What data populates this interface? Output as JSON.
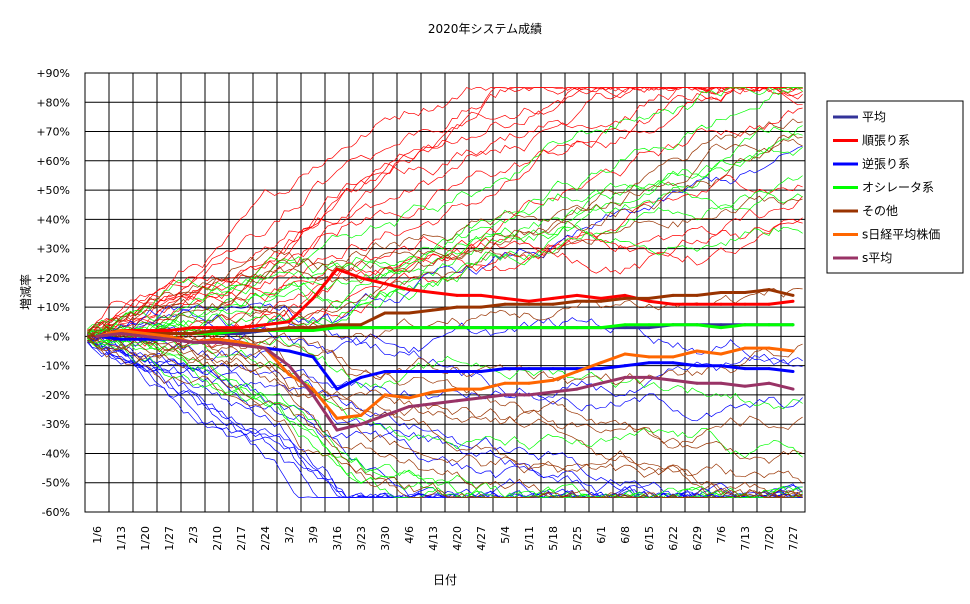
{
  "chart_data": {
    "type": "line",
    "title": "2020年システム成績",
    "xlabel": "日付",
    "ylabel": "増減率",
    "ylim": [
      -60,
      90
    ],
    "y_ticks": [
      -60,
      -50,
      -40,
      -30,
      -20,
      -10,
      0,
      10,
      20,
      30,
      40,
      50,
      60,
      70,
      80,
      90
    ],
    "y_tick_labels": [
      "-60%",
      "-50%",
      "-40%",
      "-30%",
      "-20%",
      "-10%",
      "+0%",
      "+10%",
      "+20%",
      "+30%",
      "+40%",
      "+50%",
      "+60%",
      "+70%",
      "+80%",
      "+90%"
    ],
    "x_tick_labels": [
      "1/6",
      "1/13",
      "1/20",
      "1/27",
      "2/3",
      "2/10",
      "2/17",
      "2/24",
      "3/2",
      "3/9",
      "3/16",
      "3/23",
      "3/30",
      "4/6",
      "4/13",
      "4/20",
      "4/27",
      "5/4",
      "5/11",
      "5/18",
      "5/25",
      "6/1",
      "6/8",
      "6/15",
      "6/22",
      "6/29",
      "7/6",
      "7/13",
      "7/20",
      "7/27"
    ],
    "grid": true,
    "legend_position": "right",
    "series": [
      {
        "name": "平均",
        "color": "#333399",
        "values": [
          0,
          1,
          1,
          1,
          1,
          1,
          1,
          2,
          2,
          3,
          3,
          3,
          3,
          3,
          3,
          3,
          3,
          3,
          3,
          3,
          3,
          3,
          3,
          3,
          4,
          4,
          4,
          4,
          4,
          4
        ]
      },
      {
        "name": "順張り系",
        "color": "#ff0000",
        "values": [
          0,
          2,
          2,
          2,
          3,
          3,
          3,
          4,
          5,
          13,
          23,
          20,
          18,
          16,
          15,
          14,
          14,
          13,
          12,
          13,
          14,
          13,
          14,
          12,
          11,
          11,
          11,
          11,
          11,
          12
        ]
      },
      {
        "name": "逆張り系",
        "color": "#0000ff",
        "values": [
          0,
          -1,
          -1,
          -1,
          -2,
          -2,
          -2,
          -4,
          -5,
          -7,
          -18,
          -14,
          -12,
          -12,
          -12,
          -12,
          -12,
          -11,
          -11,
          -11,
          -11,
          -11,
          -10,
          -9,
          -9,
          -10,
          -10,
          -11,
          -11,
          -12
        ]
      },
      {
        "name": "オシレータ系",
        "color": "#00ff00",
        "values": [
          0,
          1,
          1,
          1,
          1,
          1,
          2,
          2,
          2,
          2,
          3,
          3,
          3,
          3,
          3,
          3,
          3,
          3,
          3,
          3,
          3,
          3,
          4,
          4,
          4,
          4,
          3,
          4,
          4,
          4
        ]
      },
      {
        "name": "その他",
        "color": "#993300",
        "values": [
          0,
          1,
          1,
          1,
          1,
          2,
          2,
          2,
          3,
          3,
          4,
          4,
          8,
          8,
          9,
          10,
          10,
          11,
          11,
          11,
          12,
          12,
          13,
          13,
          14,
          14,
          15,
          15,
          16,
          14
        ]
      },
      {
        "name": "s日経平均株価",
        "color": "#ff6600",
        "values": [
          0,
          2,
          1,
          0,
          -2,
          -1,
          -2,
          -4,
          -13,
          -18,
          -28,
          -27,
          -20,
          -21,
          -19,
          -18,
          -18,
          -16,
          -16,
          -15,
          -12,
          -9,
          -6,
          -7,
          -7,
          -5,
          -6,
          -4,
          -4,
          -5
        ]
      },
      {
        "name": "s平均",
        "color": "#993366",
        "values": [
          0,
          1,
          0,
          -1,
          -2,
          -2,
          -3,
          -4,
          -10,
          -20,
          -32,
          -30,
          -27,
          -24,
          -23,
          -22,
          -21,
          -20,
          -20,
          -19,
          -18,
          -16,
          -14,
          -14,
          -15,
          -16,
          -16,
          -17,
          -16,
          -18
        ]
      }
    ]
  }
}
